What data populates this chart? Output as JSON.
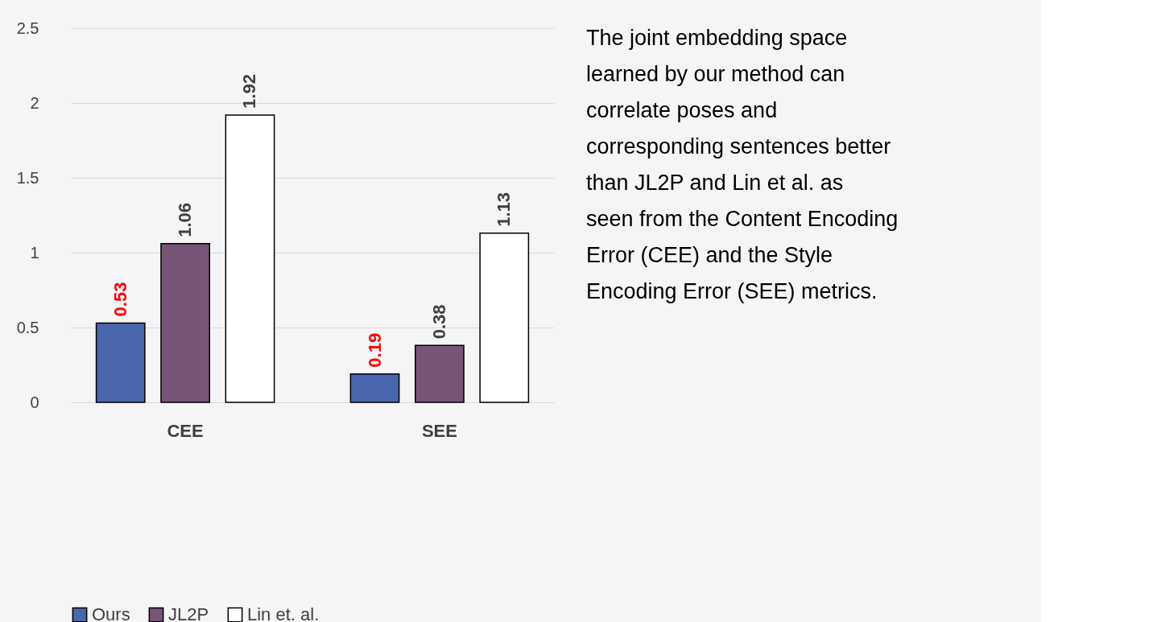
{
  "chart_data": {
    "type": "bar",
    "categories": [
      "CEE",
      "SEE"
    ],
    "series": [
      {
        "name": "Ours",
        "color": "#4a66ac",
        "values": [
          0.53,
          0.19
        ]
      },
      {
        "name": "JL2P",
        "color": "#775577",
        "values": [
          1.06,
          0.38
        ]
      },
      {
        "name": "Lin et. al.",
        "color": "#ffffff",
        "values": [
          1.92,
          1.13
        ]
      }
    ],
    "ylim": [
      0,
      2.5
    ],
    "yticks": [
      0,
      0.5,
      1,
      1.5,
      2,
      2.5
    ],
    "grid": "y",
    "legend": "bottom",
    "data_labels": true,
    "annotations": [
      "The joint embedding space learned by our method can correlate poses and corresponding sentences better than JL2P and Lin et al. as seen from the Content Encoding Error (CEE) and the Style Encoding Error (SEE) metrics."
    ]
  }
}
